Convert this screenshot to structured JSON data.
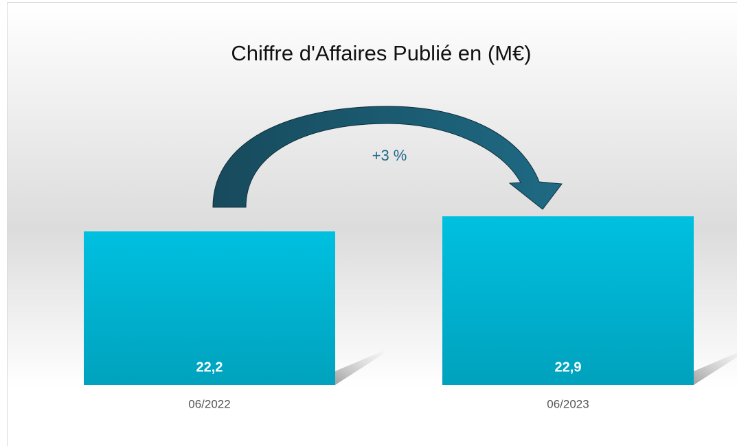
{
  "chart_data": {
    "type": "bar",
    "title": "Chiffre d'Affaires Publié en (M€)",
    "categories": [
      "06/2022",
      "06/2023"
    ],
    "values": [
      22.2,
      22.9
    ],
    "value_labels": [
      "22,2",
      "22,9"
    ],
    "color": "#00bcdc",
    "ylim": [
      15.1,
      29
    ],
    "annotations": [
      "+3 %"
    ]
  }
}
